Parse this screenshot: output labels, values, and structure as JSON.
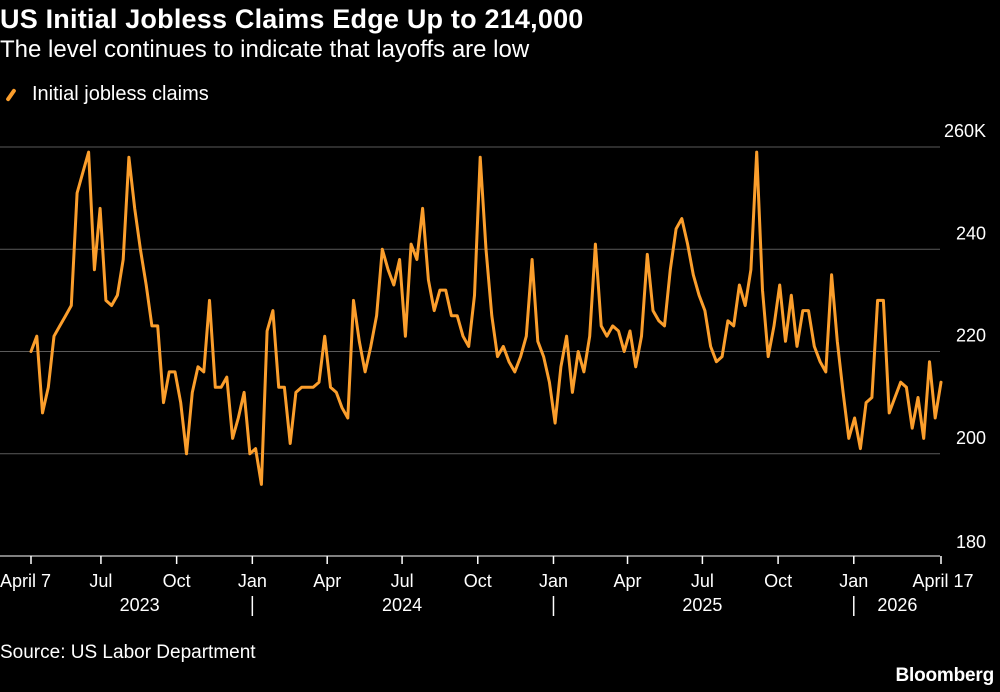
{
  "title": "US Initial Jobless Claims Edge Up to 214,000",
  "subtitle": "The level continues to indicate that layoffs are low",
  "source": "Source: US Labor Department",
  "brand": "Bloomberg",
  "colors": {
    "background": "#000000",
    "line": "#fb9e2c",
    "grid": "#5a5a5a",
    "text": "#ffffff"
  },
  "chart_data": {
    "type": "line",
    "title": "US Initial Jobless Claims Edge Up to 214,000",
    "subtitle": "The level continues to indicate that layoffs are low",
    "ylabel": "",
    "xlabel": "",
    "ylim": [
      180,
      260
    ],
    "yticks": [
      {
        "value": 260,
        "label": "260K"
      },
      {
        "value": 240,
        "label": "240"
      },
      {
        "value": 220,
        "label": "220"
      },
      {
        "value": 200,
        "label": "200"
      },
      {
        "value": 180,
        "label": "180"
      }
    ],
    "y_axis_position": "right",
    "grid": true,
    "legend_position": "top-left",
    "x_start": "2023-04-07",
    "x_end": "2026-04-17",
    "xticks": [
      {
        "date": "2023-04-07",
        "label": "April 7"
      },
      {
        "date": "2023-07-01",
        "label": "Jul"
      },
      {
        "date": "2023-10-01",
        "label": "Oct"
      },
      {
        "date": "2024-01-01",
        "label": "Jan"
      },
      {
        "date": "2024-04-01",
        "label": "Apr"
      },
      {
        "date": "2024-07-01",
        "label": "Jul"
      },
      {
        "date": "2024-10-01",
        "label": "Oct"
      },
      {
        "date": "2025-01-01",
        "label": "Jan"
      },
      {
        "date": "2025-04-01",
        "label": "Apr"
      },
      {
        "date": "2025-07-01",
        "label": "Jul"
      },
      {
        "date": "2025-10-01",
        "label": "Oct"
      },
      {
        "date": "2026-01-01",
        "label": "Jan"
      },
      {
        "date": "2026-04-17",
        "label": "April 17"
      }
    ],
    "year_labels": [
      {
        "date": "2023-08-17",
        "label": "2023"
      },
      {
        "date": "2024-07-01",
        "label": "2024"
      },
      {
        "date": "2025-07-01",
        "label": "2025"
      },
      {
        "date": "2026-02-23",
        "label": "2026"
      }
    ],
    "year_separators": [
      "2024-01-01",
      "2025-01-01",
      "2026-01-01"
    ],
    "series": [
      {
        "name": "Initial jobless claims",
        "x": [
          "2023-04-07",
          "2023-04-14",
          "2023-04-21",
          "2023-04-28",
          "2023-05-05",
          "2023-05-12",
          "2023-05-19",
          "2023-05-26",
          "2023-06-02",
          "2023-06-09",
          "2023-06-16",
          "2023-06-23",
          "2023-06-30",
          "2023-07-07",
          "2023-07-14",
          "2023-07-21",
          "2023-07-28",
          "2023-08-04",
          "2023-08-11",
          "2023-08-18",
          "2023-08-25",
          "2023-09-01",
          "2023-09-08",
          "2023-09-15",
          "2023-09-22",
          "2023-09-29",
          "2023-10-06",
          "2023-10-13",
          "2023-10-20",
          "2023-10-27",
          "2023-11-03",
          "2023-11-10",
          "2023-11-17",
          "2023-11-24",
          "2023-12-01",
          "2023-12-08",
          "2023-12-15",
          "2023-12-22",
          "2023-12-29",
          "2024-01-05",
          "2024-01-12",
          "2024-01-19",
          "2024-01-26",
          "2024-02-02",
          "2024-02-09",
          "2024-02-16",
          "2024-02-23",
          "2024-03-01",
          "2024-03-08",
          "2024-03-15",
          "2024-03-22",
          "2024-03-29",
          "2024-04-05",
          "2024-04-12",
          "2024-04-19",
          "2024-04-26",
          "2024-05-03",
          "2024-05-10",
          "2024-05-17",
          "2024-05-24",
          "2024-05-31",
          "2024-06-07",
          "2024-06-14",
          "2024-06-21",
          "2024-06-28",
          "2024-07-05",
          "2024-07-12",
          "2024-07-19",
          "2024-07-26",
          "2024-08-02",
          "2024-08-09",
          "2024-08-16",
          "2024-08-23",
          "2024-08-30",
          "2024-09-06",
          "2024-09-13",
          "2024-09-20",
          "2024-09-27",
          "2024-10-04",
          "2024-10-11",
          "2024-10-18",
          "2024-10-25",
          "2024-11-01",
          "2024-11-08",
          "2024-11-15",
          "2024-11-22",
          "2024-11-29",
          "2024-12-06",
          "2024-12-13",
          "2024-12-20",
          "2024-12-27",
          "2025-01-03",
          "2025-01-10",
          "2025-01-17",
          "2025-01-24",
          "2025-01-31",
          "2025-02-07",
          "2025-02-14",
          "2025-02-21",
          "2025-02-28",
          "2025-03-07",
          "2025-03-14",
          "2025-03-21",
          "2025-03-28",
          "2025-04-04",
          "2025-04-11",
          "2025-04-18",
          "2025-04-25",
          "2025-05-02",
          "2025-05-09",
          "2025-05-16",
          "2025-05-23",
          "2025-05-30",
          "2025-06-06",
          "2025-06-13",
          "2025-06-20",
          "2025-06-27",
          "2025-07-04",
          "2025-07-11",
          "2025-07-18",
          "2025-07-25",
          "2025-08-01",
          "2025-08-08",
          "2025-08-15",
          "2025-08-22",
          "2025-08-29",
          "2025-09-05",
          "2025-09-12",
          "2025-09-19",
          "2025-09-26",
          "2025-10-03",
          "2025-10-10",
          "2025-10-17",
          "2025-10-24",
          "2025-10-31",
          "2025-11-07",
          "2025-11-14",
          "2025-11-21",
          "2025-11-28",
          "2025-12-05",
          "2025-12-12",
          "2025-12-19",
          "2025-12-26",
          "2026-01-02",
          "2026-01-09",
          "2026-01-16",
          "2026-01-23",
          "2026-01-30",
          "2026-02-06",
          "2026-02-13",
          "2026-02-20",
          "2026-02-27",
          "2026-03-06",
          "2026-03-13",
          "2026-03-20",
          "2026-03-27",
          "2026-04-03",
          "2026-04-10",
          "2026-04-17"
        ],
        "values": [
          220,
          223,
          208,
          213,
          223,
          225,
          227,
          229,
          251,
          255,
          259,
          236,
          248,
          230,
          229,
          231,
          238,
          258,
          248,
          240,
          233,
          225,
          225,
          210,
          216,
          216,
          210,
          200,
          212,
          217,
          216,
          230,
          213,
          213,
          215,
          203,
          207,
          212,
          200,
          201,
          194,
          224,
          228,
          213,
          213,
          202,
          212,
          213,
          213,
          213,
          214,
          223,
          213,
          212,
          209,
          207,
          230,
          222,
          216,
          221,
          227,
          240,
          236,
          233,
          238,
          223,
          241,
          238,
          248,
          234,
          228,
          232,
          232,
          227,
          227,
          223,
          221,
          231,
          258,
          240,
          227,
          219,
          221,
          218,
          216,
          219,
          223,
          238,
          222,
          219,
          214,
          206,
          217,
          223,
          212,
          220,
          216,
          223,
          241,
          225,
          223,
          225,
          224,
          220,
          224,
          217,
          223,
          239,
          228,
          226,
          225,
          236,
          244,
          246,
          241,
          235,
          231,
          228,
          221,
          218,
          219,
          226,
          225,
          233,
          229,
          236,
          259,
          232,
          219,
          225,
          233,
          222,
          231,
          221,
          228,
          228,
          221,
          218,
          216,
          235,
          222,
          212,
          203,
          207,
          201,
          210,
          211,
          230,
          230,
          208,
          211,
          214,
          213,
          205,
          211,
          203,
          218,
          207,
          214
        ]
      }
    ]
  }
}
